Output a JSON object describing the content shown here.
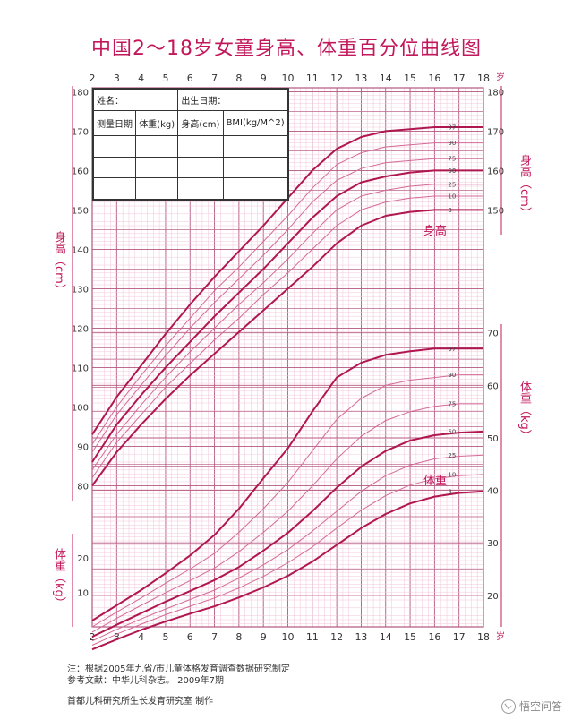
{
  "title": "中国2～18岁女童身高、体重百分位曲线图",
  "record_form": {
    "name_label": "姓名：",
    "birth_label": "出生日期：",
    "columns": [
      "测量日期",
      "体重(kg)",
      "身高(cm)",
      "BMI(kg/M^2)"
    ],
    "empty_rows": 3
  },
  "axis_labels": {
    "height_left": "身高（cm）",
    "height_right": "身高（cm）",
    "weight_left": "体重（kg）",
    "weight_right": "体重（kg）",
    "age_unit": "岁",
    "height_curve_label": "身高",
    "weight_curve_label": "体重"
  },
  "colors": {
    "accent": "#c2185b",
    "grid_minor": "#f2c6d8",
    "grid_major": "#b5577f",
    "curve_dark": "#b0164f",
    "curve_light": "#d46a98"
  },
  "footnotes": {
    "line1": "注：根据2005年九省/市儿童体格发育调查数据研究制定",
    "line2": "参考文献：中华儿科杂志。  2009年7期",
    "line3": "首都儿科研究所生长发育研究室  制作"
  },
  "watermark": "悟空问答",
  "chart_data": {
    "type": "line",
    "x_ticks": [
      2,
      3,
      4,
      5,
      6,
      7,
      8,
      9,
      10,
      11,
      12,
      13,
      14,
      15,
      16,
      17,
      18
    ],
    "x_range": [
      2,
      18
    ],
    "height_axis": {
      "ticks": [
        80,
        90,
        100,
        110,
        120,
        130,
        140,
        150,
        160,
        170,
        180
      ],
      "range": [
        76,
        181
      ]
    },
    "weight_axis_left": {
      "ticks": [
        10,
        20
      ],
      "range": [
        0,
        26
      ]
    },
    "weight_axis_right": {
      "ticks": [
        20,
        30,
        40,
        50,
        60,
        70
      ],
      "range": [
        14,
        72
      ]
    },
    "height_series": [
      {
        "name": "97",
        "x": [
          2,
          3,
          4,
          5,
          6,
          7,
          8,
          9,
          10,
          11,
          12,
          13,
          14,
          15,
          16,
          17,
          18
        ],
        "values": [
          93.0,
          102.5,
          110.5,
          118.5,
          126.0,
          133.0,
          139.5,
          146.0,
          153.0,
          160.0,
          165.5,
          168.5,
          170.0,
          170.5,
          171.0,
          171.0,
          171.0
        ]
      },
      {
        "name": "90",
        "x": [
          2,
          3,
          4,
          5,
          6,
          7,
          8,
          9,
          10,
          11,
          12,
          13,
          14,
          15,
          16,
          17,
          18
        ],
        "values": [
          90.5,
          100.0,
          108.0,
          115.5,
          122.5,
          129.5,
          135.5,
          142.0,
          148.5,
          155.5,
          161.5,
          164.5,
          166.0,
          166.5,
          167.0,
          167.0,
          167.0
        ]
      },
      {
        "name": "75",
        "x": [
          2,
          3,
          4,
          5,
          6,
          7,
          8,
          9,
          10,
          11,
          12,
          13,
          14,
          15,
          16,
          17,
          18
        ],
        "values": [
          88.5,
          98.0,
          105.5,
          113.0,
          120.0,
          126.5,
          132.5,
          138.5,
          145.0,
          152.0,
          157.5,
          160.5,
          162.0,
          162.5,
          163.0,
          163.0,
          163.0
        ]
      },
      {
        "name": "50",
        "x": [
          2,
          3,
          4,
          5,
          6,
          7,
          8,
          9,
          10,
          11,
          12,
          13,
          14,
          15,
          16,
          17,
          18
        ],
        "values": [
          86.0,
          95.5,
          103.0,
          110.0,
          116.5,
          123.0,
          129.0,
          135.0,
          141.5,
          148.0,
          153.5,
          157.0,
          158.5,
          159.5,
          160.0,
          160.0,
          160.0
        ]
      },
      {
        "name": "25",
        "x": [
          2,
          3,
          4,
          5,
          6,
          7,
          8,
          9,
          10,
          11,
          12,
          13,
          14,
          15,
          16,
          17,
          18
        ],
        "values": [
          84.0,
          93.0,
          100.5,
          107.5,
          114.0,
          120.0,
          126.0,
          131.5,
          137.5,
          144.0,
          150.0,
          153.5,
          155.0,
          156.0,
          156.5,
          156.5,
          156.5
        ]
      },
      {
        "name": "10",
        "x": [
          2,
          3,
          4,
          5,
          6,
          7,
          8,
          9,
          10,
          11,
          12,
          13,
          14,
          15,
          16,
          17,
          18
        ],
        "values": [
          82.0,
          91.0,
          98.0,
          105.0,
          111.0,
          117.0,
          122.5,
          128.5,
          134.0,
          140.0,
          146.0,
          150.0,
          152.0,
          153.0,
          153.5,
          153.5,
          153.5
        ]
      },
      {
        "name": "3",
        "x": [
          2,
          3,
          4,
          5,
          6,
          7,
          8,
          9,
          10,
          11,
          12,
          13,
          14,
          15,
          16,
          17,
          18
        ],
        "values": [
          80.0,
          88.5,
          95.5,
          102.0,
          108.0,
          113.5,
          119.0,
          124.5,
          130.0,
          135.5,
          141.5,
          146.0,
          148.5,
          149.5,
          150.0,
          150.0,
          150.0
        ]
      }
    ],
    "weight_series": [
      {
        "name": "97",
        "x": [
          2,
          3,
          4,
          5,
          6,
          7,
          8,
          9,
          10,
          11,
          12,
          13,
          14,
          15,
          16,
          17,
          18
        ],
        "values": [
          15.2,
          18.1,
          21.0,
          24.2,
          27.6,
          31.5,
          36.5,
          42.3,
          48.0,
          55.0,
          61.5,
          64.3,
          65.8,
          66.5,
          67.0,
          67.0,
          67.0
        ]
      },
      {
        "name": "90",
        "x": [
          2,
          3,
          4,
          5,
          6,
          7,
          8,
          9,
          10,
          11,
          12,
          13,
          14,
          15,
          16,
          17,
          18
        ],
        "values": [
          14.0,
          16.8,
          19.5,
          22.3,
          25.0,
          28.0,
          32.0,
          36.5,
          41.5,
          47.5,
          53.5,
          57.5,
          60.0,
          61.0,
          61.5,
          62.0,
          62.0
        ]
      },
      {
        "name": "75",
        "x": [
          2,
          3,
          4,
          5,
          6,
          7,
          8,
          9,
          10,
          11,
          12,
          13,
          14,
          15,
          16,
          17,
          18
        ],
        "values": [
          13.0,
          15.6,
          18.1,
          20.5,
          22.8,
          25.2,
          28.3,
          32.0,
          36.0,
          40.8,
          46.0,
          50.3,
          53.3,
          55.0,
          56.0,
          56.5,
          56.5
        ]
      },
      {
        "name": "50",
        "x": [
          2,
          3,
          4,
          5,
          6,
          7,
          8,
          9,
          10,
          11,
          12,
          13,
          14,
          15,
          16,
          17,
          18
        ],
        "values": [
          12.1,
          14.4,
          16.6,
          18.8,
          20.8,
          22.9,
          25.4,
          28.5,
          31.9,
          36.0,
          40.5,
          44.5,
          47.5,
          49.5,
          50.5,
          51.0,
          51.2
        ]
      },
      {
        "name": "25",
        "x": [
          2,
          3,
          4,
          5,
          6,
          7,
          8,
          9,
          10,
          11,
          12,
          13,
          14,
          15,
          16,
          17,
          18
        ],
        "values": [
          11.3,
          13.5,
          15.5,
          17.4,
          19.2,
          21.0,
          23.3,
          25.8,
          28.7,
          32.2,
          36.0,
          39.8,
          42.8,
          44.8,
          46.0,
          46.5,
          46.7
        ]
      },
      {
        "name": "10",
        "x": [
          2,
          3,
          4,
          5,
          6,
          7,
          8,
          9,
          10,
          11,
          12,
          13,
          14,
          15,
          16,
          17,
          18
        ],
        "values": [
          10.5,
          12.6,
          14.5,
          16.3,
          17.9,
          19.5,
          21.4,
          23.6,
          26.2,
          29.2,
          32.8,
          36.2,
          39.0,
          41.0,
          42.2,
          42.8,
          43.0
        ]
      },
      {
        "name": "3",
        "x": [
          2,
          3,
          4,
          5,
          6,
          7,
          8,
          9,
          10,
          11,
          12,
          13,
          14,
          15,
          16,
          17,
          18
        ],
        "values": [
          9.7,
          11.6,
          13.4,
          15.0,
          16.5,
          17.9,
          19.6,
          21.5,
          23.7,
          26.4,
          29.6,
          32.8,
          35.5,
          37.5,
          38.8,
          39.5,
          39.8
        ]
      }
    ]
  }
}
